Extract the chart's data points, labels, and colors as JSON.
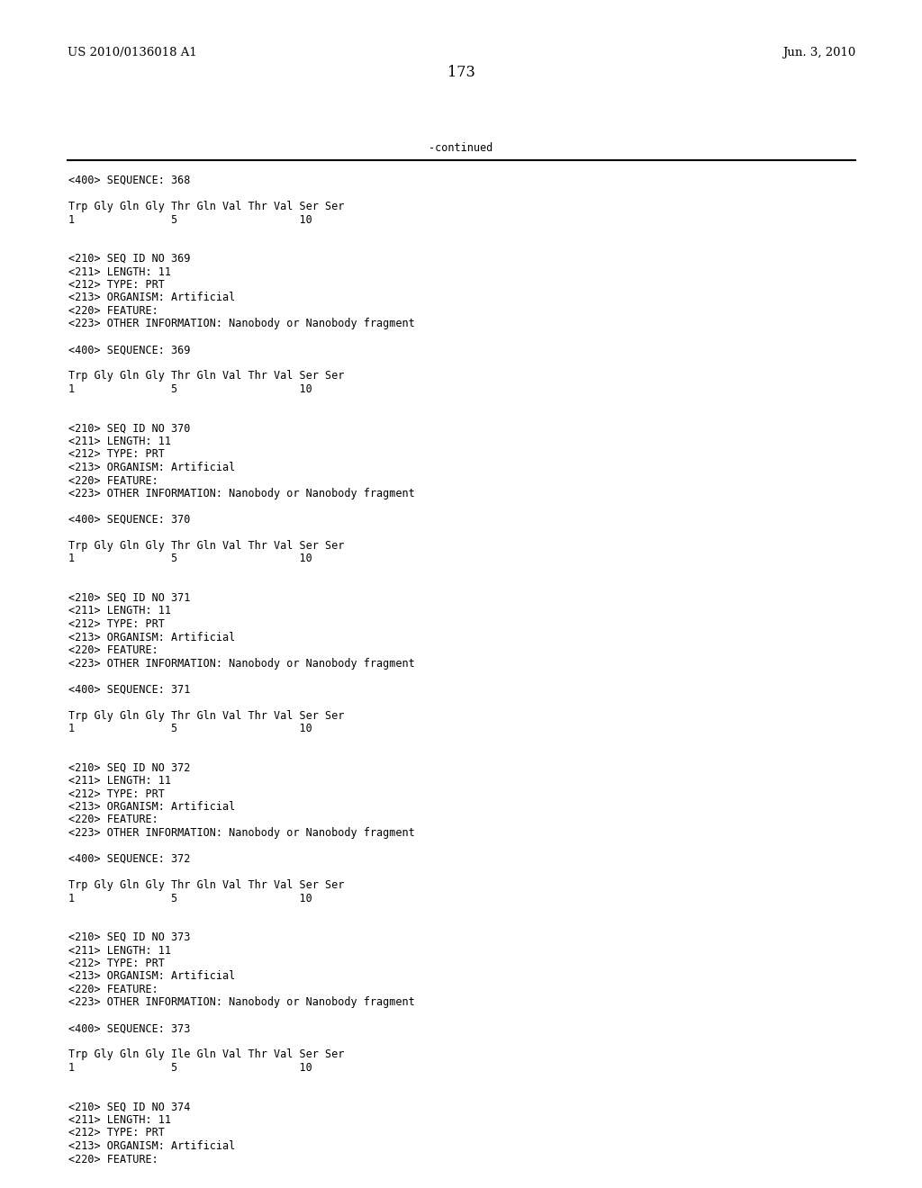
{
  "header_left": "US 2010/0136018 A1",
  "header_right": "Jun. 3, 2010",
  "page_number": "173",
  "continued_text": "-continued",
  "background_color": "#ffffff",
  "text_color": "#000000",
  "font_size_header": 9.5,
  "font_size_body": 8.5,
  "font_size_page": 11.5,
  "lines": [
    "<400> SEQUENCE: 368",
    "",
    "Trp Gly Gln Gly Thr Gln Val Thr Val Ser Ser",
    "1               5                   10",
    "",
    "",
    "<210> SEQ ID NO 369",
    "<211> LENGTH: 11",
    "<212> TYPE: PRT",
    "<213> ORGANISM: Artificial",
    "<220> FEATURE:",
    "<223> OTHER INFORMATION: Nanobody or Nanobody fragment",
    "",
    "<400> SEQUENCE: 369",
    "",
    "Trp Gly Gln Gly Thr Gln Val Thr Val Ser Ser",
    "1               5                   10",
    "",
    "",
    "<210> SEQ ID NO 370",
    "<211> LENGTH: 11",
    "<212> TYPE: PRT",
    "<213> ORGANISM: Artificial",
    "<220> FEATURE:",
    "<223> OTHER INFORMATION: Nanobody or Nanobody fragment",
    "",
    "<400> SEQUENCE: 370",
    "",
    "Trp Gly Gln Gly Thr Gln Val Thr Val Ser Ser",
    "1               5                   10",
    "",
    "",
    "<210> SEQ ID NO 371",
    "<211> LENGTH: 11",
    "<212> TYPE: PRT",
    "<213> ORGANISM: Artificial",
    "<220> FEATURE:",
    "<223> OTHER INFORMATION: Nanobody or Nanobody fragment",
    "",
    "<400> SEQUENCE: 371",
    "",
    "Trp Gly Gln Gly Thr Gln Val Thr Val Ser Ser",
    "1               5                   10",
    "",
    "",
    "<210> SEQ ID NO 372",
    "<211> LENGTH: 11",
    "<212> TYPE: PRT",
    "<213> ORGANISM: Artificial",
    "<220> FEATURE:",
    "<223> OTHER INFORMATION: Nanobody or Nanobody fragment",
    "",
    "<400> SEQUENCE: 372",
    "",
    "Trp Gly Gln Gly Thr Gln Val Thr Val Ser Ser",
    "1               5                   10",
    "",
    "",
    "<210> SEQ ID NO 373",
    "<211> LENGTH: 11",
    "<212> TYPE: PRT",
    "<213> ORGANISM: Artificial",
    "<220> FEATURE:",
    "<223> OTHER INFORMATION: Nanobody or Nanobody fragment",
    "",
    "<400> SEQUENCE: 373",
    "",
    "Trp Gly Gln Gly Ile Gln Val Thr Val Ser Ser",
    "1               5                   10",
    "",
    "",
    "<210> SEQ ID NO 374",
    "<211> LENGTH: 11",
    "<212> TYPE: PRT",
    "<213> ORGANISM: Artificial",
    "<220> FEATURE:"
  ]
}
